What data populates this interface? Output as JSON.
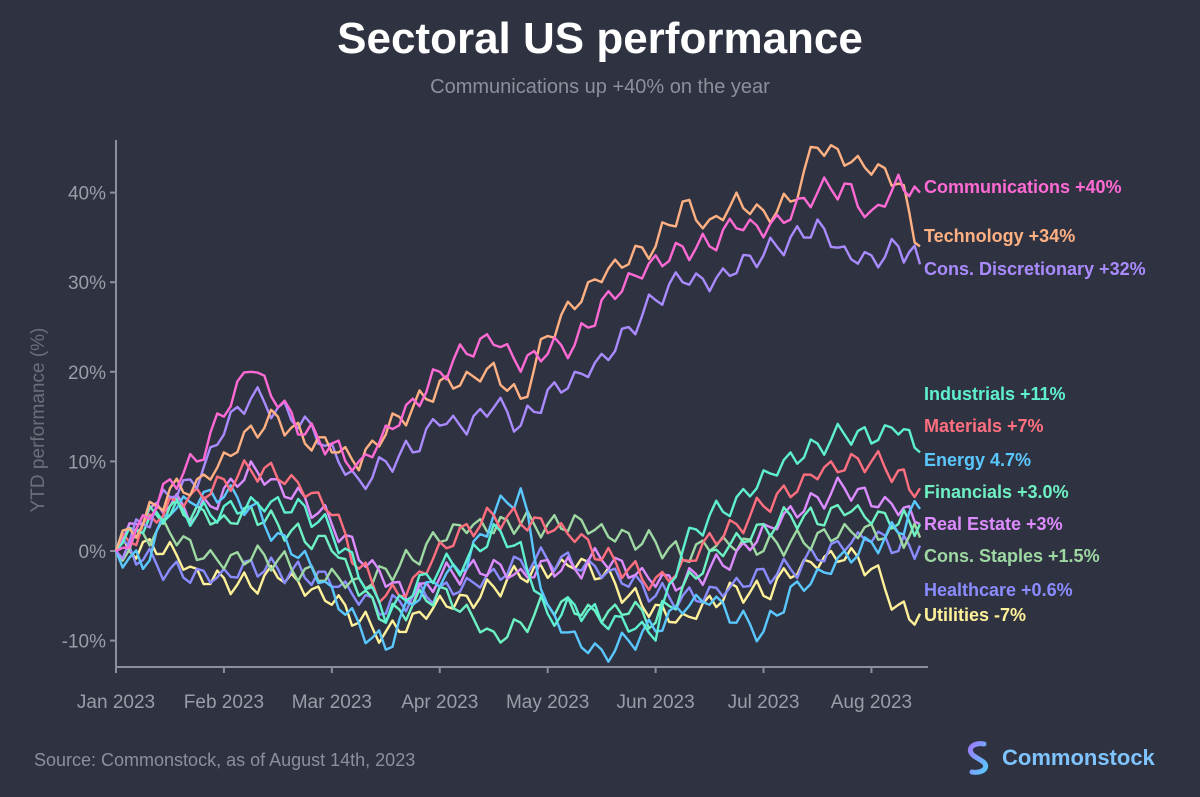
{
  "header": {
    "title": "Sectoral US performance",
    "subtitle": "Communications up +40% on the year"
  },
  "footer": {
    "source": "Source: Commonstock, as of August 14th, 2023",
    "brand": "Commonstock"
  },
  "colors": {
    "background": "#2f3240",
    "axis": "#8c8f9c",
    "tick_text": "#9a9da9"
  },
  "chart_data": {
    "type": "line",
    "title": "Sectoral US performance",
    "subtitle": "Communications up +40% on the year",
    "xlabel": "",
    "ylabel": "YTD performance (%)",
    "ylim": [
      -13,
      46
    ],
    "yticks": [
      -10,
      0,
      10,
      20,
      30,
      40
    ],
    "ytick_labels": [
      "-10%",
      "0%",
      "10%",
      "20%",
      "30%",
      "40%"
    ],
    "xlim": [
      0,
      7.45
    ],
    "xticks": [
      0,
      1,
      2,
      3,
      4,
      5,
      6,
      7
    ],
    "xtick_labels": [
      "Jan 2023",
      "Feb 2023",
      "Mar 2023",
      "Apr 2023",
      "May 2023",
      "Jun 2023",
      "Jul 2023",
      "Aug 2023"
    ],
    "grid": false,
    "legend": "inline labels at right end of each series",
    "x": [
      0,
      0.25,
      0.5,
      0.75,
      1,
      1.25,
      1.5,
      1.75,
      2,
      2.25,
      2.5,
      2.75,
      3,
      3.25,
      3.5,
      3.75,
      4,
      4.25,
      4.5,
      4.75,
      5,
      5.25,
      5.5,
      5.75,
      6,
      6.25,
      6.5,
      6.75,
      7,
      7.25,
      7.45
    ],
    "series": [
      {
        "name": "Communications",
        "label": "Communications +40%",
        "color": "#ff6ad5",
        "values": [
          0,
          4,
          8,
          10,
          15,
          20,
          16,
          13,
          12,
          10,
          14,
          17,
          20,
          22,
          23,
          20,
          22,
          23,
          28,
          31,
          33,
          34,
          34,
          36,
          35,
          37,
          40,
          41,
          38,
          42,
          40
        ]
      },
      {
        "name": "Technology",
        "label": "Technology +34%",
        "color": "#ffb183",
        "values": [
          0,
          3,
          7,
          8,
          11,
          14,
          15,
          12,
          11,
          9,
          13,
          16,
          19,
          20,
          21,
          17,
          24,
          27,
          30,
          32,
          34,
          39,
          37,
          40,
          38,
          39,
          45,
          43,
          42,
          41,
          34
        ]
      },
      {
        "name": "Cons. Discretionary",
        "label": "Cons. Discretionary +32%",
        "color": "#a98bff",
        "values": [
          0,
          3,
          6,
          7,
          13,
          17,
          16,
          15,
          12,
          8,
          10,
          11,
          14,
          13,
          16,
          14,
          18,
          20,
          22,
          25,
          28,
          30,
          29,
          31,
          33,
          35,
          37,
          34,
          33,
          34,
          32
        ]
      },
      {
        "name": "Industrials",
        "label": "Industrials +11%",
        "color": "#5ef0d0",
        "values": [
          0,
          2,
          4,
          4,
          5,
          6,
          6,
          5,
          2,
          -3,
          -8,
          -5,
          -2,
          -1,
          3,
          1,
          -7,
          -6,
          -8,
          -9,
          -10,
          0,
          4,
          6,
          9,
          11,
          12,
          13,
          12,
          13,
          11
        ]
      },
      {
        "name": "Materials",
        "label": "Materials +7%",
        "color": "#ff6f7f",
        "values": [
          0,
          3,
          6,
          7,
          8,
          9,
          8,
          6,
          4,
          -2,
          -5,
          -3,
          1,
          3,
          4,
          3,
          2,
          1,
          -1,
          -2,
          -3,
          -1,
          2,
          3,
          5,
          6,
          8,
          9,
          10,
          9,
          7
        ]
      },
      {
        "name": "Energy",
        "label": "Energy 4.7%",
        "color": "#5ac8ff",
        "values": [
          0,
          -2,
          4,
          5,
          6,
          5,
          2,
          0,
          -4,
          -8,
          -11,
          -6,
          -4,
          -2,
          4,
          7,
          -6,
          -9,
          -11,
          -10,
          -9,
          -7,
          -6,
          -8,
          -9,
          -4,
          -2,
          0,
          1,
          2,
          4.7
        ]
      },
      {
        "name": "Financials",
        "label": "Financials +3.0%",
        "color": "#6ef2c4",
        "values": [
          0,
          3,
          5,
          5,
          4,
          5,
          3,
          1,
          0,
          -5,
          -8,
          -6,
          -4,
          -6,
          -9,
          -8,
          -6,
          -7,
          -8,
          -7,
          -8,
          -4,
          0,
          2,
          3,
          4,
          3,
          4,
          3,
          3,
          3
        ]
      },
      {
        "name": "Real Estate",
        "label": "Real Estate +3%",
        "color": "#dd8cff",
        "values": [
          0,
          3,
          5,
          4,
          7,
          10,
          8,
          6,
          3,
          -1,
          -4,
          -6,
          -3,
          -2,
          -1,
          -2,
          -1,
          -2,
          -1,
          -3,
          -4,
          -4,
          -2,
          0,
          3,
          5,
          6,
          7,
          5,
          4,
          3
        ]
      },
      {
        "name": "Cons. Staples",
        "label": "Cons. Staples +1.5%",
        "color": "#9ed8a2",
        "values": [
          0,
          2,
          2,
          -1,
          -2,
          -1,
          -1,
          -2,
          -2,
          -3,
          -2,
          -1,
          1,
          2,
          2,
          3,
          3,
          4,
          3,
          2,
          1,
          -1,
          0,
          0,
          0,
          1,
          2,
          3,
          3,
          2,
          1.5
        ]
      },
      {
        "name": "Healthcare",
        "label": "Healthcare +0.6%",
        "color": "#8a8cff",
        "values": [
          0,
          -1,
          -2,
          -2,
          -2,
          -1,
          -2,
          -3,
          -4,
          -6,
          -7,
          -5,
          -4,
          -3,
          -2,
          -1,
          -1,
          -2,
          -3,
          -4,
          -5,
          -5,
          -4,
          -3,
          -2,
          -2,
          -1,
          0,
          1,
          0,
          0.6
        ]
      },
      {
        "name": "Utilities",
        "label": "Utilities -7%",
        "color": "#fff199",
        "values": [
          0,
          1,
          1,
          -2,
          -3,
          -4,
          -3,
          -5,
          -6,
          -8,
          -9,
          -7,
          -5,
          -5,
          -4,
          -3,
          -3,
          -2,
          -3,
          -5,
          -6,
          -7,
          -5,
          -4,
          -5,
          -3,
          -2,
          -1,
          -2,
          -6,
          -7
        ]
      }
    ]
  }
}
